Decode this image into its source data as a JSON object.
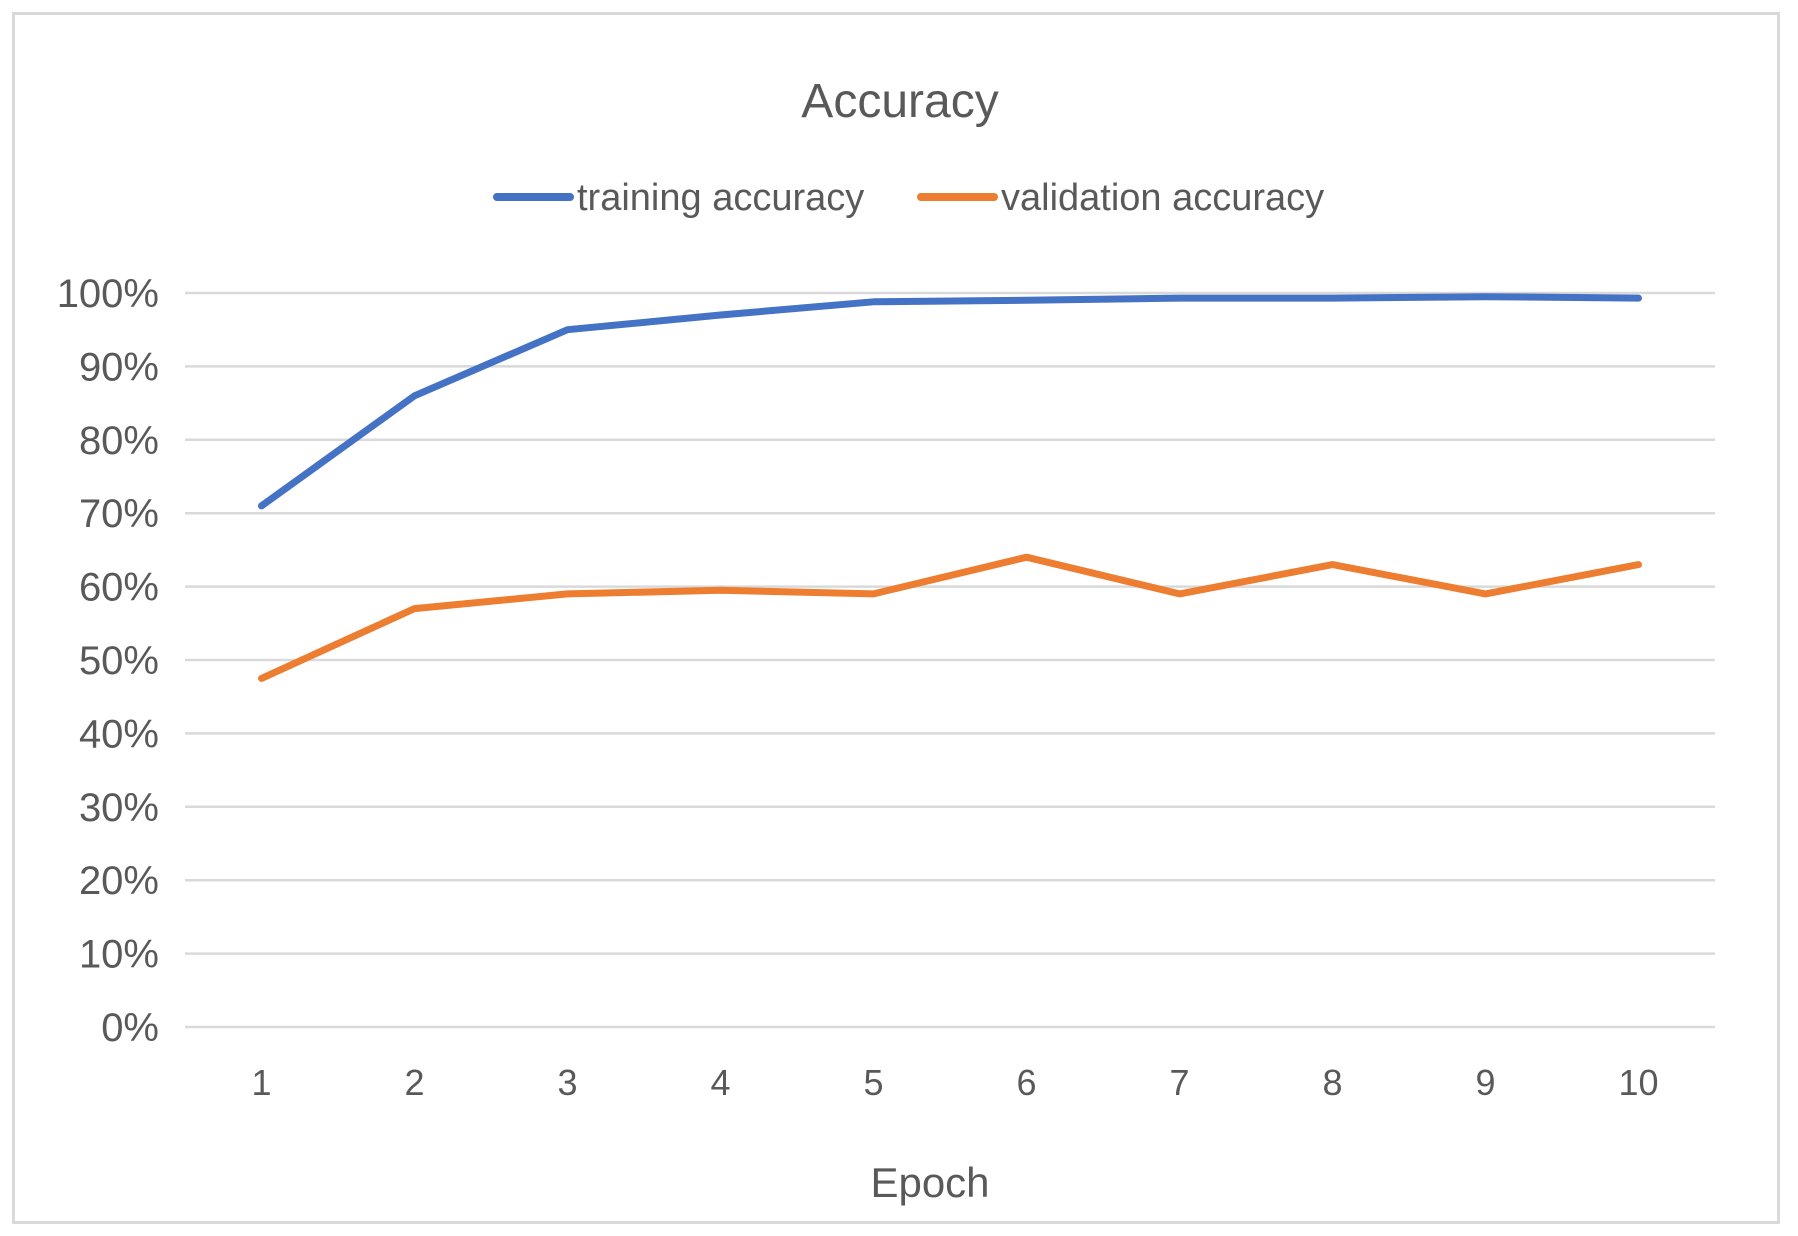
{
  "chart_data": {
    "type": "line",
    "title": "Accuracy",
    "xlabel": "Epoch",
    "ylabel": "",
    "categories": [
      "1",
      "2",
      "3",
      "4",
      "5",
      "6",
      "7",
      "8",
      "9",
      "10"
    ],
    "ylim": [
      0,
      100
    ],
    "y_ticks": [
      "0%",
      "10%",
      "20%",
      "30%",
      "40%",
      "50%",
      "60%",
      "70%",
      "80%",
      "90%",
      "100%"
    ],
    "grid": true,
    "legend_position": "top",
    "series": [
      {
        "name": "training accuracy",
        "color": "#4472c4",
        "values": [
          71,
          86,
          95,
          97,
          98.8,
          99,
          99.3,
          99.3,
          99.5,
          99.3
        ]
      },
      {
        "name": "validation accuracy",
        "color": "#ed7d31",
        "values": [
          47.5,
          57,
          59,
          59.5,
          59,
          64,
          59,
          63,
          59,
          63
        ]
      }
    ]
  }
}
